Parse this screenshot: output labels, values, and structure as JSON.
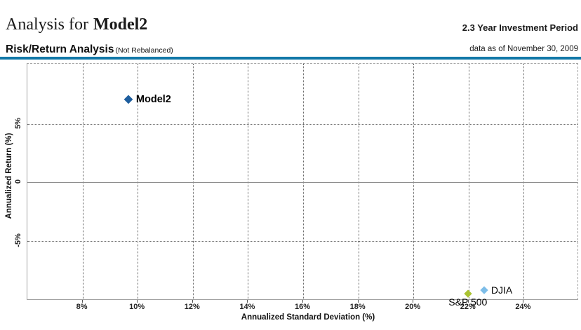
{
  "header": {
    "title_prefix": "Analysis for",
    "title_emphasis": "Model2",
    "investment_period": "2.3 Year Investment Period",
    "section_title": "Risk/Return Analysis",
    "section_note": "(Not Rebalanced)",
    "data_as_of": "data as of November 30, 2009"
  },
  "colors": {
    "divider": "#1278a8",
    "grid": "#676767",
    "zero_line": "#8e8e8e",
    "frame": "#a3a3a3"
  },
  "chart_data": {
    "type": "scatter",
    "title": "Risk/Return Analysis (Not Rebalanced)",
    "xlabel": "Annualized Standard Deviation (%)",
    "ylabel": "Annualized Return (%)",
    "xlim": [
      6,
      26
    ],
    "ylim": [
      -10.05,
      10.1
    ],
    "grid": true,
    "legend_position": "inline-point-labels",
    "x_ticks": [
      {
        "value": 8,
        "label": "8%"
      },
      {
        "value": 10,
        "label": "10%"
      },
      {
        "value": 12,
        "label": "12%"
      },
      {
        "value": 14,
        "label": "14%"
      },
      {
        "value": 16,
        "label": "16%"
      },
      {
        "value": 18,
        "label": "18%"
      },
      {
        "value": 20,
        "label": "20%"
      },
      {
        "value": 22,
        "label": "22%"
      },
      {
        "value": 24,
        "label": "24%"
      }
    ],
    "y_ticks": [
      {
        "value": 5,
        "label": "5%"
      },
      {
        "value": 0,
        "label": "0"
      },
      {
        "value": -5,
        "label": "-5%"
      }
    ],
    "points": [
      {
        "name": "Model2",
        "x": 9.7,
        "y": 7.0,
        "color": "#1e5e9e",
        "marker": "diamond",
        "marker_size": 13,
        "label_weight": "bold",
        "label_pos": "right"
      },
      {
        "name": "S&P 500",
        "x": 22.0,
        "y": -9.5,
        "color": "#aac332",
        "marker": "diamond",
        "marker_size": 11,
        "label_weight": "normal",
        "label_pos": "below"
      },
      {
        "name": "DJIA",
        "x": 22.6,
        "y": -9.2,
        "color": "#7dbde8",
        "marker": "diamond",
        "marker_size": 11,
        "label_weight": "normal",
        "label_pos": "right"
      }
    ]
  }
}
